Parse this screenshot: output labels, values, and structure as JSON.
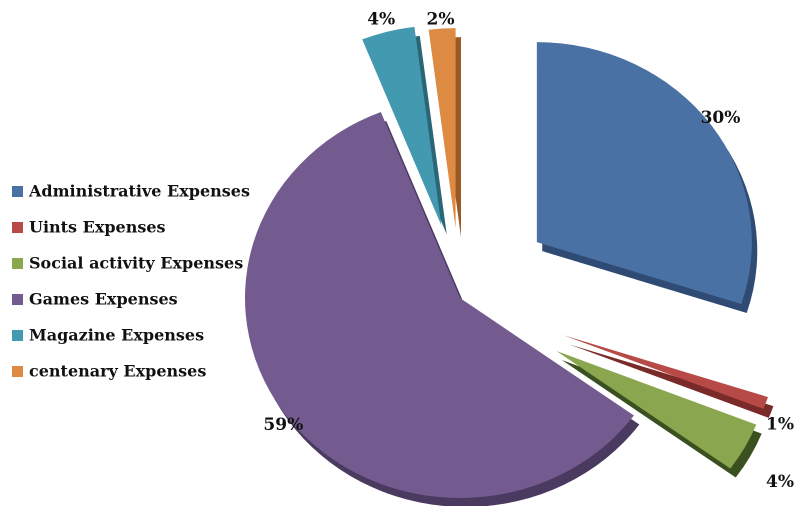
{
  "chart_data": {
    "type": "pie",
    "style": "3d-exploded",
    "legend_position": "left",
    "slices": [
      {
        "label": "Administrative Expenses",
        "value": 30,
        "display": "30%",
        "color": "#4A71A4",
        "side_color": "#2F4B73"
      },
      {
        "label": "Uints Expenses",
        "value": 1,
        "display": "1%",
        "color": "#B74A46",
        "side_color": "#7A2A28"
      },
      {
        "label": "Social activity Expenses",
        "value": 4,
        "display": "4%",
        "color": "#8AA64F",
        "side_color": "#3B5020"
      },
      {
        "label": "Games Expenses",
        "value": 59,
        "display": "59%",
        "color": "#735B8F",
        "side_color": "#4A3A60"
      },
      {
        "label": " Magazine Expenses",
        "value": 4,
        "display": "4%",
        "color": "#4399AF",
        "side_color": "#2A6676"
      },
      {
        "label": "centenary Expenses",
        "value": 2,
        "display": "2%",
        "color": "#DD8A42",
        "side_color": "#9A5A24"
      }
    ]
  }
}
